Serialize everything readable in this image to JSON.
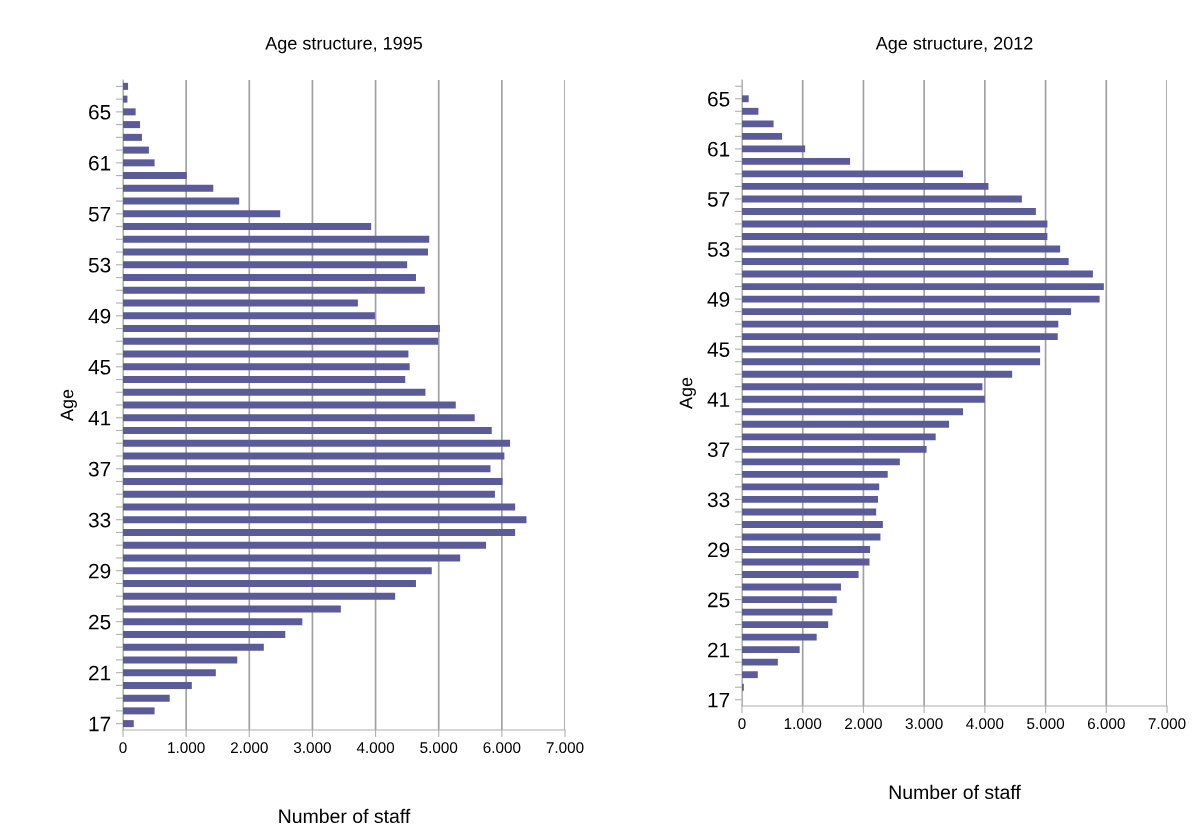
{
  "chart_data": [
    {
      "type": "bar",
      "orientation": "horizontal",
      "title": "Age structure, 1995",
      "xlabel": "Number of staff",
      "ylabel": "Age",
      "categories": [
        null,
        null,
        "65",
        null,
        null,
        null,
        "61",
        null,
        null,
        null,
        "57",
        null,
        null,
        null,
        "53",
        null,
        null,
        null,
        "49",
        null,
        null,
        null,
        "45",
        null,
        null,
        null,
        "41",
        null,
        null,
        null,
        "37",
        null,
        null,
        null,
        "33",
        null,
        null,
        null,
        "29",
        null,
        null,
        null,
        "25",
        null,
        null,
        null,
        "21",
        null,
        null,
        null,
        "17"
      ],
      "values": [
        80,
        70,
        200,
        270,
        300,
        410,
        500,
        1010,
        1430,
        1840,
        2490,
        3930,
        4850,
        4830,
        4500,
        4640,
        4780,
        3720,
        3990,
        5020,
        4990,
        4520,
        4540,
        4470,
        4790,
        5270,
        5570,
        5840,
        6130,
        6040,
        5820,
        6010,
        5890,
        6210,
        6390,
        6210,
        5750,
        5340,
        4890,
        4640,
        4310,
        3450,
        2840,
        2570,
        2230,
        1810,
        1470,
        1090,
        740,
        500,
        170
      ],
      "color": "#5b5b9a",
      "xlim": [
        0,
        7000
      ],
      "xticks": [
        0,
        {
          "value": 1000,
          "label": "1.000"
        },
        {
          "value": 2000,
          "label": "2.000"
        },
        {
          "value": 3000,
          "label": "3.000"
        },
        {
          "value": 4000,
          "label": "4.000"
        },
        {
          "value": 5000,
          "label": "5.000"
        },
        {
          "value": 6000,
          "label": "6.000"
        },
        {
          "value": 7000,
          "label": "7.000"
        }
      ],
      "grid": "x",
      "legend": false
    },
    {
      "type": "bar",
      "orientation": "horizontal",
      "title": "Age structure, 2012",
      "xlabel": "Number of staff",
      "ylabel": "Age",
      "categories": [
        null,
        "65",
        null,
        null,
        null,
        "61",
        null,
        null,
        null,
        "57",
        null,
        null,
        null,
        "53",
        null,
        null,
        null,
        "49",
        null,
        null,
        null,
        "45",
        null,
        null,
        null,
        "41",
        null,
        null,
        null,
        "37",
        null,
        null,
        null,
        "33",
        null,
        null,
        null,
        "29",
        null,
        null,
        null,
        "25",
        null,
        null,
        null,
        "21",
        null,
        null,
        null,
        "17"
      ],
      "values": [
        null,
        110,
        270,
        520,
        660,
        1040,
        1780,
        3640,
        4060,
        4610,
        4840,
        5030,
        5030,
        5240,
        5380,
        5780,
        5960,
        5890,
        5420,
        5210,
        5200,
        4910,
        4910,
        4450,
        3960,
        4000,
        3640,
        3410,
        3190,
        3040,
        2600,
        2400,
        2260,
        2240,
        2210,
        2320,
        2280,
        2110,
        2100,
        1920,
        1630,
        1560,
        1490,
        1420,
        1230,
        950,
        590,
        260,
        30,
        0
      ],
      "color": "#5b5b9a",
      "xlim": [
        0,
        7000
      ],
      "xticks": [
        0,
        {
          "value": 1000,
          "label": "1.000"
        },
        {
          "value": 2000,
          "label": "2.000"
        },
        {
          "value": 3000,
          "label": "3.000"
        },
        {
          "value": 4000,
          "label": "4.000"
        },
        {
          "value": 5000,
          "label": "5.000"
        },
        {
          "value": 6000,
          "label": "6.000"
        },
        {
          "value": 7000,
          "label": "7.000"
        }
      ],
      "grid": "x",
      "legend": false
    }
  ]
}
